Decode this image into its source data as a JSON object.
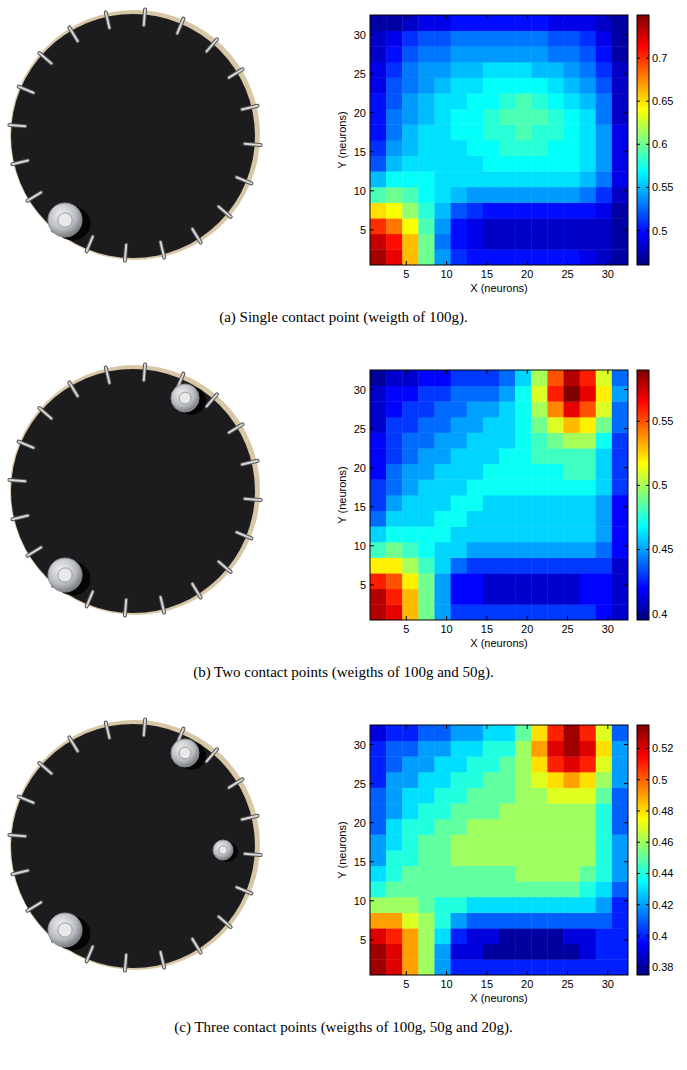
{
  "chart_data": [
    {
      "type": "heatmap",
      "caption": "(a) Single contact point (weigth of 100g).",
      "xlabel": "X (neurons)",
      "ylabel": "Y (neurons)",
      "x": [
        1.5,
        3.5,
        5.5,
        7.5,
        9.5,
        11.5,
        13.5,
        15.5,
        17.5,
        19.5,
        21.5,
        23.5,
        25.5,
        27.5,
        29.5,
        31.5
      ],
      "y": [
        1.5,
        3.5,
        5.5,
        7.5,
        9.5,
        11.5,
        13.5,
        15.5,
        17.5,
        19.5,
        21.5,
        23.5,
        25.5,
        27.5,
        29.5,
        31.5
      ],
      "xlim": [
        0.5,
        32.5
      ],
      "ylim": [
        0.5,
        32.5
      ],
      "xticks": [
        5,
        10,
        15,
        20,
        25,
        30
      ],
      "yticks": [
        5,
        10,
        15,
        20,
        25,
        30
      ],
      "cells": [
        [
          0.74,
          0.72,
          0.66,
          0.6,
          0.54,
          0.51,
          0.5,
          0.5,
          0.5,
          0.5,
          0.5,
          0.5,
          0.5,
          0.49,
          0.48,
          0.47
        ],
        [
          0.73,
          0.71,
          0.66,
          0.6,
          0.53,
          0.5,
          0.49,
          0.48,
          0.48,
          0.48,
          0.48,
          0.48,
          0.48,
          0.48,
          0.48,
          0.47
        ],
        [
          0.7,
          0.68,
          0.64,
          0.59,
          0.54,
          0.5,
          0.49,
          0.48,
          0.48,
          0.48,
          0.48,
          0.48,
          0.48,
          0.48,
          0.48,
          0.47
        ],
        [
          0.65,
          0.64,
          0.61,
          0.58,
          0.55,
          0.52,
          0.51,
          0.5,
          0.5,
          0.5,
          0.5,
          0.5,
          0.5,
          0.5,
          0.49,
          0.47
        ],
        [
          0.59,
          0.6,
          0.59,
          0.57,
          0.56,
          0.55,
          0.54,
          0.54,
          0.54,
          0.54,
          0.54,
          0.54,
          0.54,
          0.53,
          0.51,
          0.48
        ],
        [
          0.55,
          0.57,
          0.57,
          0.57,
          0.56,
          0.56,
          0.56,
          0.56,
          0.56,
          0.56,
          0.56,
          0.56,
          0.56,
          0.55,
          0.53,
          0.49
        ],
        [
          0.52,
          0.55,
          0.56,
          0.56,
          0.56,
          0.56,
          0.56,
          0.57,
          0.57,
          0.57,
          0.57,
          0.57,
          0.57,
          0.56,
          0.54,
          0.49
        ],
        [
          0.51,
          0.54,
          0.55,
          0.56,
          0.56,
          0.56,
          0.57,
          0.57,
          0.58,
          0.58,
          0.58,
          0.57,
          0.57,
          0.56,
          0.54,
          0.49
        ],
        [
          0.5,
          0.53,
          0.55,
          0.56,
          0.56,
          0.57,
          0.57,
          0.58,
          0.58,
          0.59,
          0.58,
          0.58,
          0.57,
          0.56,
          0.54,
          0.49
        ],
        [
          0.5,
          0.53,
          0.54,
          0.55,
          0.56,
          0.57,
          0.57,
          0.58,
          0.59,
          0.59,
          0.59,
          0.58,
          0.57,
          0.56,
          0.53,
          0.48
        ],
        [
          0.5,
          0.52,
          0.54,
          0.55,
          0.56,
          0.56,
          0.57,
          0.57,
          0.58,
          0.59,
          0.58,
          0.57,
          0.56,
          0.55,
          0.53,
          0.48
        ],
        [
          0.49,
          0.52,
          0.53,
          0.54,
          0.55,
          0.56,
          0.56,
          0.57,
          0.57,
          0.57,
          0.57,
          0.56,
          0.55,
          0.54,
          0.52,
          0.48
        ],
        [
          0.49,
          0.51,
          0.53,
          0.54,
          0.54,
          0.55,
          0.55,
          0.56,
          0.56,
          0.56,
          0.55,
          0.55,
          0.54,
          0.53,
          0.51,
          0.48
        ],
        [
          0.48,
          0.5,
          0.52,
          0.53,
          0.53,
          0.54,
          0.54,
          0.54,
          0.54,
          0.54,
          0.54,
          0.53,
          0.53,
          0.52,
          0.5,
          0.47
        ],
        [
          0.48,
          0.49,
          0.51,
          0.52,
          0.52,
          0.53,
          0.53,
          0.53,
          0.53,
          0.53,
          0.53,
          0.52,
          0.52,
          0.51,
          0.49,
          0.47
        ],
        [
          0.47,
          0.47,
          0.48,
          0.49,
          0.49,
          0.5,
          0.5,
          0.5,
          0.5,
          0.5,
          0.5,
          0.49,
          0.49,
          0.49,
          0.48,
          0.47
        ]
      ],
      "color_range": [
        0.46,
        0.75
      ],
      "color_ticks": [
        0.5,
        0.55,
        0.6,
        0.65,
        0.7
      ]
    },
    {
      "type": "heatmap",
      "caption": "(b) Two contact points (weigths of 100g and 50g).",
      "xlabel": "X (neurons)",
      "ylabel": "Y (neurons)",
      "x": [
        1.5,
        3.5,
        5.5,
        7.5,
        9.5,
        11.5,
        13.5,
        15.5,
        17.5,
        19.5,
        21.5,
        23.5,
        25.5,
        27.5,
        29.5,
        31.5
      ],
      "y": [
        1.5,
        3.5,
        5.5,
        7.5,
        9.5,
        11.5,
        13.5,
        15.5,
        17.5,
        19.5,
        21.5,
        23.5,
        25.5,
        27.5,
        29.5,
        31.5
      ],
      "xlim": [
        0.5,
        32.5
      ],
      "ylim": [
        0.5,
        32.5
      ],
      "xticks": [
        5,
        10,
        15,
        20,
        25,
        30
      ],
      "yticks": [
        5,
        10,
        15,
        20,
        25,
        30
      ],
      "cells": [
        [
          0.58,
          0.57,
          0.53,
          0.49,
          0.45,
          0.43,
          0.43,
          0.43,
          0.43,
          0.43,
          0.43,
          0.43,
          0.43,
          0.43,
          0.42,
          0.41
        ],
        [
          0.58,
          0.56,
          0.53,
          0.49,
          0.45,
          0.42,
          0.42,
          0.41,
          0.41,
          0.41,
          0.41,
          0.41,
          0.41,
          0.42,
          0.42,
          0.41
        ],
        [
          0.56,
          0.55,
          0.52,
          0.49,
          0.45,
          0.42,
          0.42,
          0.41,
          0.41,
          0.41,
          0.41,
          0.41,
          0.41,
          0.42,
          0.42,
          0.41
        ],
        [
          0.52,
          0.52,
          0.5,
          0.48,
          0.46,
          0.44,
          0.43,
          0.43,
          0.43,
          0.43,
          0.43,
          0.43,
          0.43,
          0.43,
          0.43,
          0.41
        ],
        [
          0.48,
          0.49,
          0.48,
          0.47,
          0.46,
          0.46,
          0.45,
          0.45,
          0.45,
          0.45,
          0.45,
          0.45,
          0.45,
          0.45,
          0.44,
          0.42
        ],
        [
          0.46,
          0.47,
          0.47,
          0.47,
          0.47,
          0.46,
          0.46,
          0.46,
          0.46,
          0.46,
          0.46,
          0.46,
          0.46,
          0.46,
          0.45,
          0.42
        ],
        [
          0.44,
          0.46,
          0.46,
          0.46,
          0.47,
          0.47,
          0.46,
          0.46,
          0.46,
          0.46,
          0.46,
          0.46,
          0.46,
          0.46,
          0.45,
          0.42
        ],
        [
          0.43,
          0.45,
          0.46,
          0.46,
          0.46,
          0.47,
          0.47,
          0.46,
          0.46,
          0.46,
          0.46,
          0.46,
          0.46,
          0.46,
          0.45,
          0.42
        ],
        [
          0.43,
          0.44,
          0.45,
          0.46,
          0.46,
          0.46,
          0.47,
          0.47,
          0.47,
          0.47,
          0.47,
          0.47,
          0.47,
          0.47,
          0.46,
          0.43
        ],
        [
          0.42,
          0.44,
          0.45,
          0.45,
          0.46,
          0.46,
          0.46,
          0.47,
          0.47,
          0.47,
          0.47,
          0.47,
          0.48,
          0.48,
          0.46,
          0.43
        ],
        [
          0.42,
          0.43,
          0.44,
          0.45,
          0.45,
          0.46,
          0.46,
          0.46,
          0.47,
          0.47,
          0.48,
          0.48,
          0.48,
          0.48,
          0.46,
          0.43
        ],
        [
          0.42,
          0.43,
          0.44,
          0.44,
          0.45,
          0.45,
          0.46,
          0.46,
          0.46,
          0.47,
          0.48,
          0.49,
          0.5,
          0.5,
          0.47,
          0.43
        ],
        [
          0.41,
          0.43,
          0.43,
          0.44,
          0.44,
          0.45,
          0.45,
          0.46,
          0.46,
          0.47,
          0.49,
          0.51,
          0.53,
          0.52,
          0.49,
          0.44
        ],
        [
          0.41,
          0.42,
          0.43,
          0.43,
          0.44,
          0.44,
          0.45,
          0.45,
          0.46,
          0.47,
          0.5,
          0.54,
          0.57,
          0.55,
          0.51,
          0.44
        ],
        [
          0.41,
          0.42,
          0.42,
          0.43,
          0.43,
          0.44,
          0.44,
          0.44,
          0.45,
          0.47,
          0.51,
          0.56,
          0.59,
          0.57,
          0.52,
          0.45
        ],
        [
          0.4,
          0.41,
          0.41,
          0.42,
          0.42,
          0.43,
          0.43,
          0.43,
          0.44,
          0.46,
          0.5,
          0.55,
          0.58,
          0.56,
          0.51,
          0.44
        ]
      ],
      "color_range": [
        0.395,
        0.59
      ],
      "color_ticks": [
        0.4,
        0.45,
        0.5,
        0.55
      ]
    },
    {
      "type": "heatmap",
      "caption": "(c) Three contact points (weigths of 100g, 50g and 20g).",
      "xlabel": "X (neurons)",
      "ylabel": "Y (neurons)",
      "x": [
        1.5,
        3.5,
        5.5,
        7.5,
        9.5,
        11.5,
        13.5,
        15.5,
        17.5,
        19.5,
        21.5,
        23.5,
        25.5,
        27.5,
        29.5,
        31.5
      ],
      "y": [
        1.5,
        3.5,
        5.5,
        7.5,
        9.5,
        11.5,
        13.5,
        15.5,
        17.5,
        19.5,
        21.5,
        23.5,
        25.5,
        27.5,
        29.5,
        31.5
      ],
      "xlim": [
        0.5,
        32.5
      ],
      "ylim": [
        0.5,
        32.5
      ],
      "xticks": [
        5,
        10,
        15,
        20,
        25,
        30
      ],
      "yticks": [
        5,
        10,
        15,
        20,
        25,
        30
      ],
      "cells": [
        [
          0.53,
          0.52,
          0.49,
          0.46,
          0.42,
          0.4,
          0.4,
          0.4,
          0.4,
          0.4,
          0.4,
          0.4,
          0.4,
          0.4,
          0.4,
          0.4
        ],
        [
          0.53,
          0.52,
          0.49,
          0.46,
          0.42,
          0.39,
          0.39,
          0.38,
          0.38,
          0.38,
          0.38,
          0.38,
          0.38,
          0.39,
          0.4,
          0.4
        ],
        [
          0.52,
          0.51,
          0.49,
          0.46,
          0.43,
          0.4,
          0.39,
          0.39,
          0.38,
          0.38,
          0.38,
          0.38,
          0.39,
          0.39,
          0.4,
          0.4
        ],
        [
          0.49,
          0.49,
          0.47,
          0.46,
          0.44,
          0.42,
          0.41,
          0.41,
          0.41,
          0.41,
          0.41,
          0.41,
          0.41,
          0.41,
          0.41,
          0.4
        ],
        [
          0.46,
          0.46,
          0.46,
          0.45,
          0.44,
          0.44,
          0.43,
          0.43,
          0.43,
          0.43,
          0.43,
          0.43,
          0.43,
          0.43,
          0.42,
          0.4
        ],
        [
          0.44,
          0.45,
          0.45,
          0.45,
          0.45,
          0.45,
          0.45,
          0.45,
          0.45,
          0.45,
          0.45,
          0.45,
          0.45,
          0.44,
          0.43,
          0.41
        ],
        [
          0.43,
          0.44,
          0.45,
          0.45,
          0.45,
          0.45,
          0.45,
          0.45,
          0.45,
          0.46,
          0.46,
          0.46,
          0.46,
          0.45,
          0.44,
          0.42
        ],
        [
          0.42,
          0.44,
          0.44,
          0.45,
          0.45,
          0.46,
          0.46,
          0.46,
          0.46,
          0.46,
          0.46,
          0.46,
          0.46,
          0.46,
          0.44,
          0.42
        ],
        [
          0.42,
          0.43,
          0.44,
          0.45,
          0.45,
          0.46,
          0.46,
          0.46,
          0.46,
          0.46,
          0.46,
          0.46,
          0.46,
          0.46,
          0.44,
          0.42
        ],
        [
          0.41,
          0.43,
          0.44,
          0.44,
          0.45,
          0.45,
          0.46,
          0.46,
          0.46,
          0.46,
          0.46,
          0.46,
          0.46,
          0.46,
          0.44,
          0.41
        ],
        [
          0.41,
          0.42,
          0.43,
          0.44,
          0.44,
          0.45,
          0.45,
          0.45,
          0.46,
          0.46,
          0.46,
          0.46,
          0.46,
          0.46,
          0.44,
          0.41
        ],
        [
          0.41,
          0.42,
          0.43,
          0.43,
          0.44,
          0.44,
          0.45,
          0.45,
          0.45,
          0.46,
          0.46,
          0.47,
          0.47,
          0.47,
          0.45,
          0.41
        ],
        [
          0.4,
          0.42,
          0.42,
          0.43,
          0.43,
          0.44,
          0.44,
          0.45,
          0.45,
          0.46,
          0.47,
          0.48,
          0.49,
          0.48,
          0.46,
          0.42
        ],
        [
          0.4,
          0.41,
          0.42,
          0.42,
          0.43,
          0.43,
          0.44,
          0.44,
          0.45,
          0.46,
          0.48,
          0.51,
          0.52,
          0.51,
          0.47,
          0.42
        ],
        [
          0.4,
          0.41,
          0.41,
          0.42,
          0.42,
          0.43,
          0.43,
          0.44,
          0.44,
          0.46,
          0.49,
          0.52,
          0.53,
          0.52,
          0.48,
          0.42
        ],
        [
          0.39,
          0.4,
          0.4,
          0.41,
          0.41,
          0.42,
          0.42,
          0.43,
          0.43,
          0.45,
          0.48,
          0.51,
          0.53,
          0.51,
          0.47,
          0.41
        ]
      ],
      "color_range": [
        0.375,
        0.535
      ],
      "color_ticks": [
        0.38,
        0.4,
        0.42,
        0.44,
        0.46,
        0.48,
        0.5,
        0.52
      ]
    }
  ]
}
